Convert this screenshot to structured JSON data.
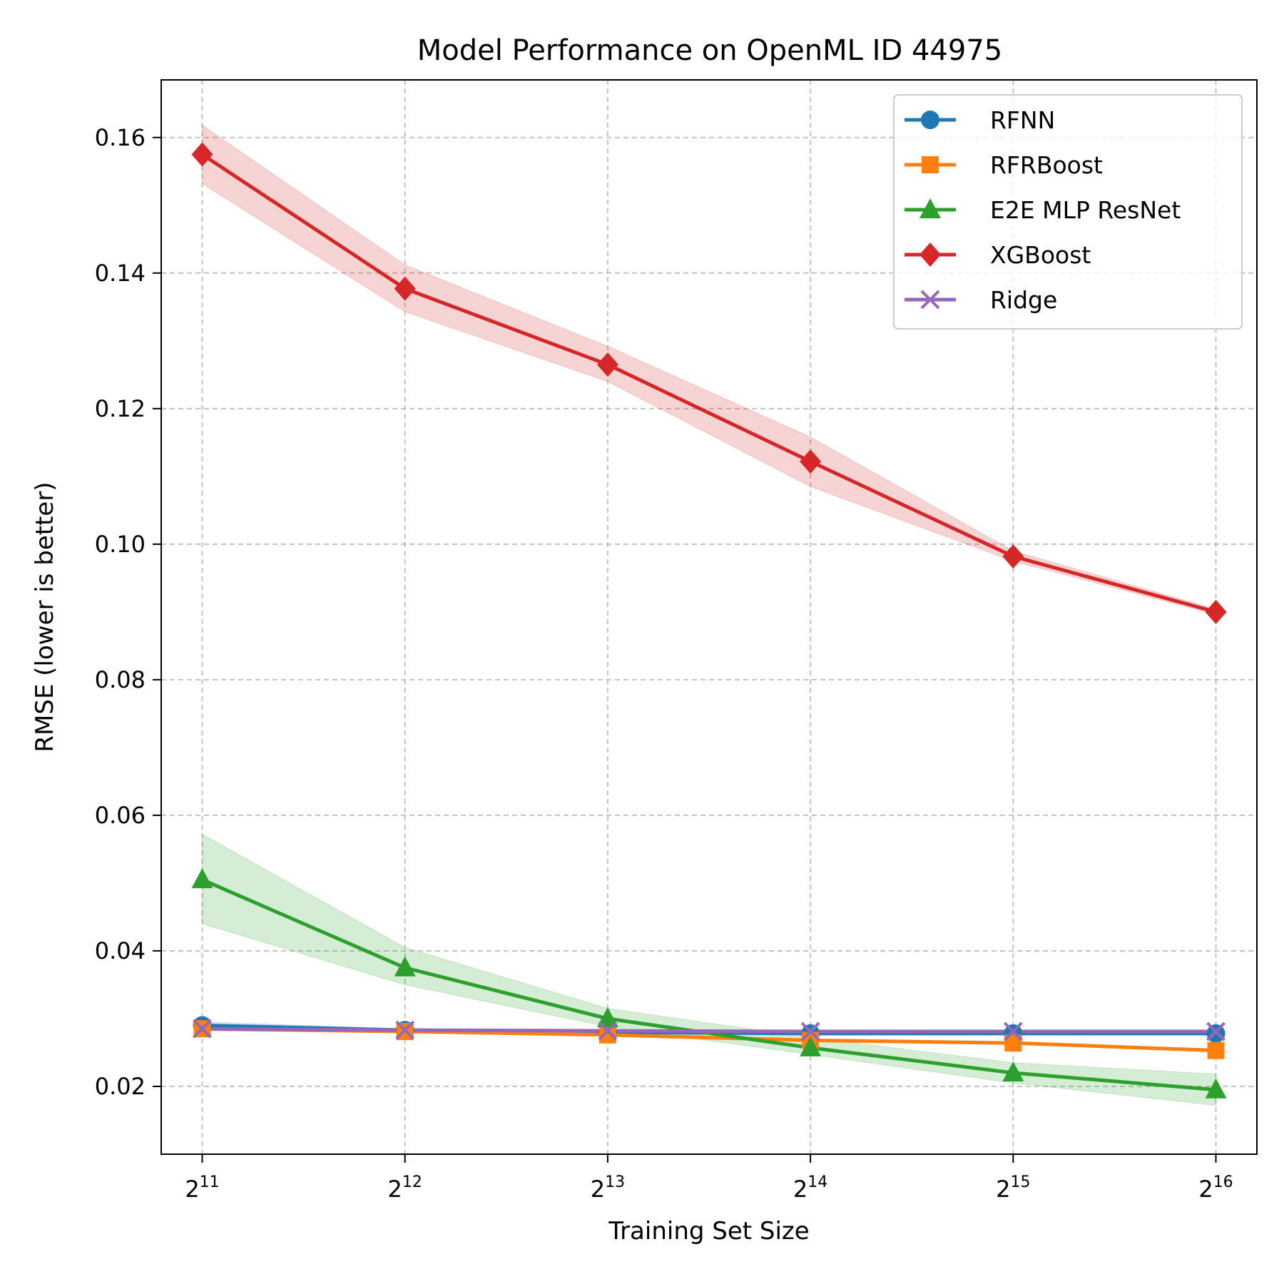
{
  "chart_data": {
    "type": "line",
    "title": "Model Performance on OpenML ID 44975",
    "xlabel": "Training Set Size",
    "ylabel": "RMSE (lower is better)",
    "x_scale": "log2",
    "x": [
      2048,
      4096,
      8192,
      16384,
      32768,
      65536
    ],
    "x_tick_labels": [
      {
        "base": "2",
        "exp": "11"
      },
      {
        "base": "2",
        "exp": "12"
      },
      {
        "base": "2",
        "exp": "13"
      },
      {
        "base": "2",
        "exp": "14"
      },
      {
        "base": "2",
        "exp": "15"
      },
      {
        "base": "2",
        "exp": "16"
      }
    ],
    "xlim": [
      1780,
      75400
    ],
    "ylim": [
      0.01,
      0.1685
    ],
    "y_ticks": [
      0.02,
      0.04,
      0.06,
      0.08,
      0.1,
      0.12,
      0.14,
      0.16
    ],
    "y_tick_labels": [
      "0.02",
      "0.04",
      "0.06",
      "0.08",
      "0.10",
      "0.12",
      "0.14",
      "0.16"
    ],
    "grid": true,
    "legend_position": "top-right",
    "series": [
      {
        "name": "RFNN",
        "color": "#1f77b4",
        "marker": "circle",
        "values": [
          0.029,
          0.0283,
          0.028,
          0.0278,
          0.0278,
          0.0278
        ],
        "lower": [
          0.0285,
          0.0281,
          0.0278,
          0.0276,
          0.0276,
          0.0276
        ],
        "upper": [
          0.0295,
          0.0285,
          0.0282,
          0.028,
          0.028,
          0.028
        ]
      },
      {
        "name": "RFRBoost",
        "color": "#ff7f0e",
        "marker": "square",
        "values": [
          0.0285,
          0.0281,
          0.0276,
          0.0268,
          0.0264,
          0.0253
        ],
        "lower": [
          0.0282,
          0.0279,
          0.0274,
          0.0266,
          0.0262,
          0.0251
        ],
        "upper": [
          0.0288,
          0.0283,
          0.0278,
          0.027,
          0.0266,
          0.0255
        ]
      },
      {
        "name": "E2E MLP ResNet",
        "color": "#2ca02c",
        "marker": "triangle",
        "values": [
          0.0505,
          0.0375,
          0.03,
          0.0257,
          0.022,
          0.0195
        ],
        "lower": [
          0.044,
          0.035,
          0.0288,
          0.0247,
          0.0205,
          0.0172
        ],
        "upper": [
          0.0572,
          0.0405,
          0.0315,
          0.0272,
          0.0235,
          0.0218
        ]
      },
      {
        "name": "XGBoost",
        "color": "#d62728",
        "marker": "diamond",
        "values": [
          0.1575,
          0.1377,
          0.1265,
          0.1122,
          0.0982,
          0.09
        ],
        "lower": [
          0.1532,
          0.1343,
          0.124,
          0.1085,
          0.0975,
          0.0896
        ],
        "upper": [
          0.1618,
          0.1412,
          0.1292,
          0.1158,
          0.099,
          0.0904
        ]
      },
      {
        "name": "Ridge",
        "color": "#9467bd",
        "marker": "x",
        "values": [
          0.0285,
          0.0283,
          0.0282,
          0.0281,
          0.0281,
          0.0281
        ],
        "lower": [
          0.0284,
          0.0282,
          0.0281,
          0.028,
          0.028,
          0.028
        ],
        "upper": [
          0.0286,
          0.0284,
          0.0283,
          0.0282,
          0.0282,
          0.0282
        ]
      }
    ]
  }
}
